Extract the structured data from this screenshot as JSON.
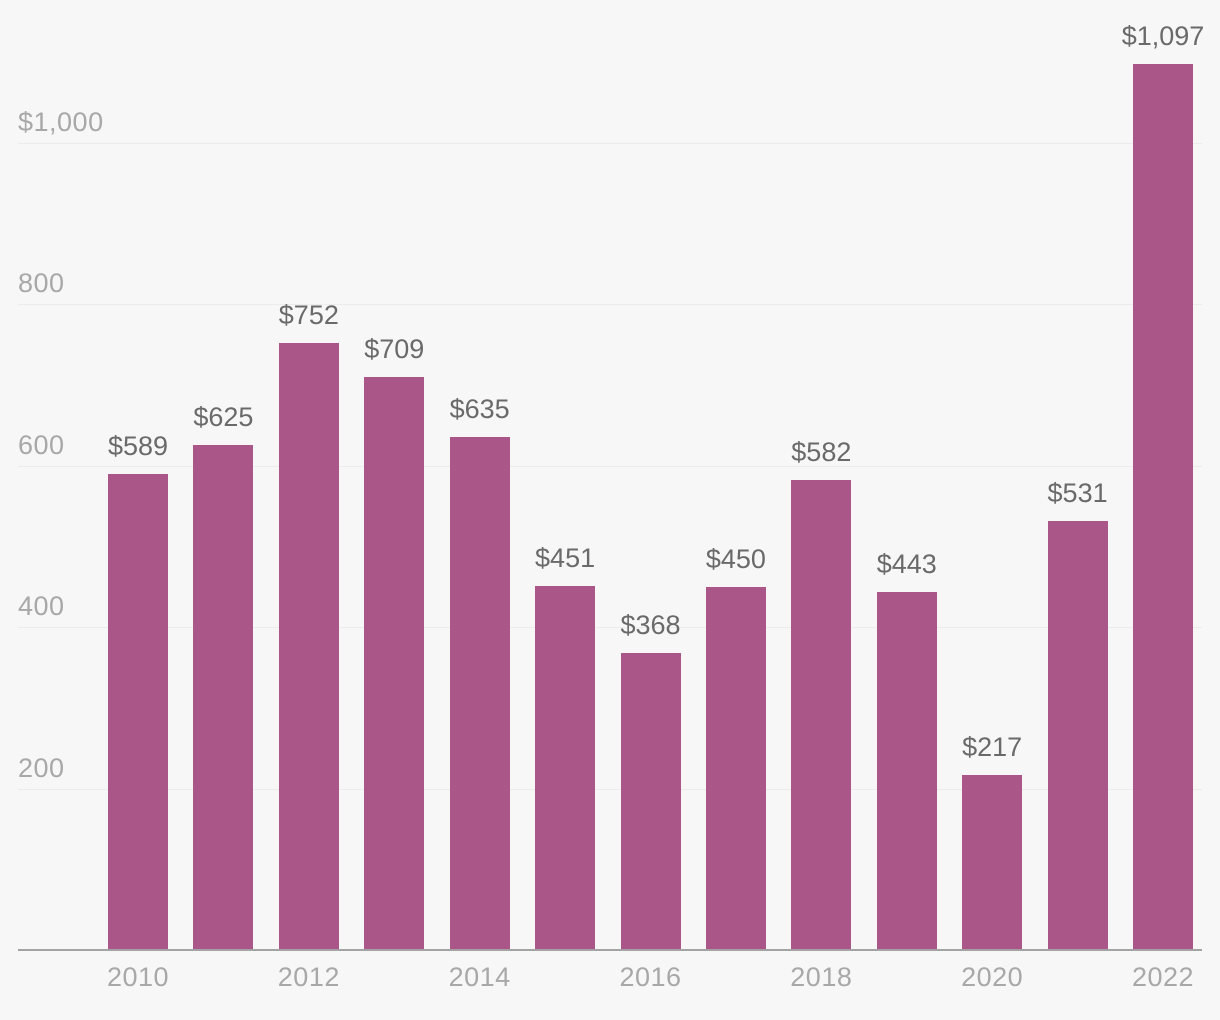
{
  "chart_data": {
    "type": "bar",
    "categories": [
      "2010",
      "2011",
      "2012",
      "2013",
      "2014",
      "2015",
      "2016",
      "2017",
      "2018",
      "2019",
      "2020",
      "2021",
      "2022"
    ],
    "values": [
      589,
      625,
      752,
      709,
      635,
      451,
      368,
      450,
      582,
      443,
      217,
      531,
      1097
    ],
    "value_labels": [
      "$589",
      "$625",
      "$752",
      "$709",
      "$635",
      "$451",
      "$368",
      "$450",
      "$582",
      "$443",
      "$217",
      "$531",
      "$1,097"
    ],
    "x_tick_labels": [
      "2010",
      "2012",
      "2014",
      "2016",
      "2018",
      "2020",
      "2022"
    ],
    "x_tick_indices": [
      0,
      2,
      4,
      6,
      8,
      10,
      12
    ],
    "y_ticks": [
      {
        "value": 1000,
        "label": "$1,000"
      },
      {
        "value": 800,
        "label": "800"
      },
      {
        "value": 600,
        "label": "600"
      },
      {
        "value": 400,
        "label": "400"
      },
      {
        "value": 200,
        "label": "200"
      }
    ],
    "title": "",
    "xlabel": "",
    "ylabel": "",
    "ylim": [
      0,
      1175
    ],
    "grid": true,
    "legend": false,
    "colors": {
      "bar": "#ab5689",
      "background": "#f8f7f7",
      "gridline": "#ececec",
      "axis": "#a3a3a3",
      "tick_text": "#a8a8a8",
      "value_text": "#6a6a6a"
    }
  }
}
